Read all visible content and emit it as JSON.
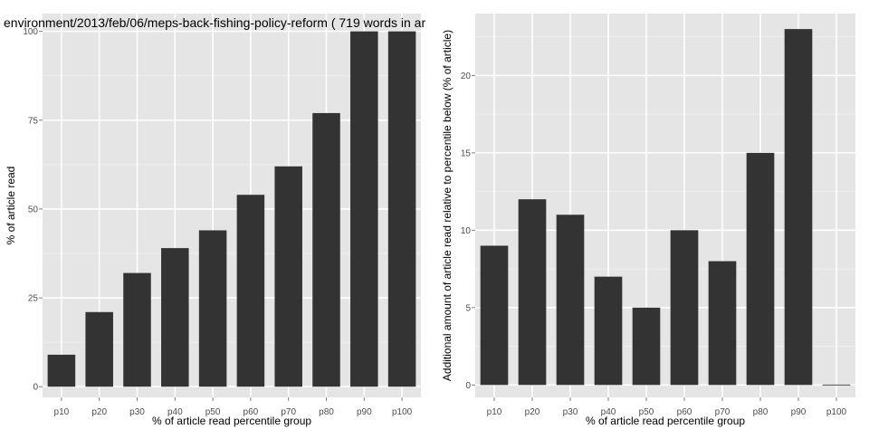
{
  "title": "environment/2013/feb/06/meps-back-fishing-policy-reform ( 719 words in ar",
  "colors": {
    "panel_bg": "#e5e5e5",
    "grid_major": "#ffffff",
    "grid_minor": "#f2f2f2",
    "bar": "#333333",
    "tick_text": "#4d4d4d",
    "label_text": "#000000"
  },
  "chart_data": [
    {
      "type": "bar",
      "title": "environment/2013/feb/06/meps-back-fishing-policy-reform ( 719 words in ar",
      "xlabel": "% of article read percentile group",
      "ylabel": "% of article read",
      "categories": [
        "p10",
        "p20",
        "p30",
        "p40",
        "p50",
        "p60",
        "p70",
        "p80",
        "p90",
        "p100"
      ],
      "values": [
        9,
        21,
        32,
        39,
        44,
        54,
        62,
        77,
        100,
        100
      ],
      "ylim": [
        -3,
        105
      ],
      "yticks": [
        0,
        25,
        50,
        75,
        100
      ],
      "ytick_labels": [
        "0",
        "25",
        "50",
        "75",
        "100"
      ],
      "grid": true
    },
    {
      "type": "bar",
      "title": "",
      "xlabel": "% of article read percentile group",
      "ylabel": "Additional amount of article read relative to percentile below (% of article)",
      "categories": [
        "p10",
        "p20",
        "p30",
        "p40",
        "p50",
        "p60",
        "p70",
        "p80",
        "p90",
        "p100"
      ],
      "values": [
        9,
        12,
        11,
        7,
        5,
        10,
        8,
        15,
        23,
        0
      ],
      "ylim": [
        -0.8,
        24
      ],
      "yticks": [
        0,
        5,
        10,
        15,
        20
      ],
      "ytick_labels": [
        "0",
        "5",
        "10",
        "15",
        "20"
      ],
      "grid": true
    }
  ]
}
